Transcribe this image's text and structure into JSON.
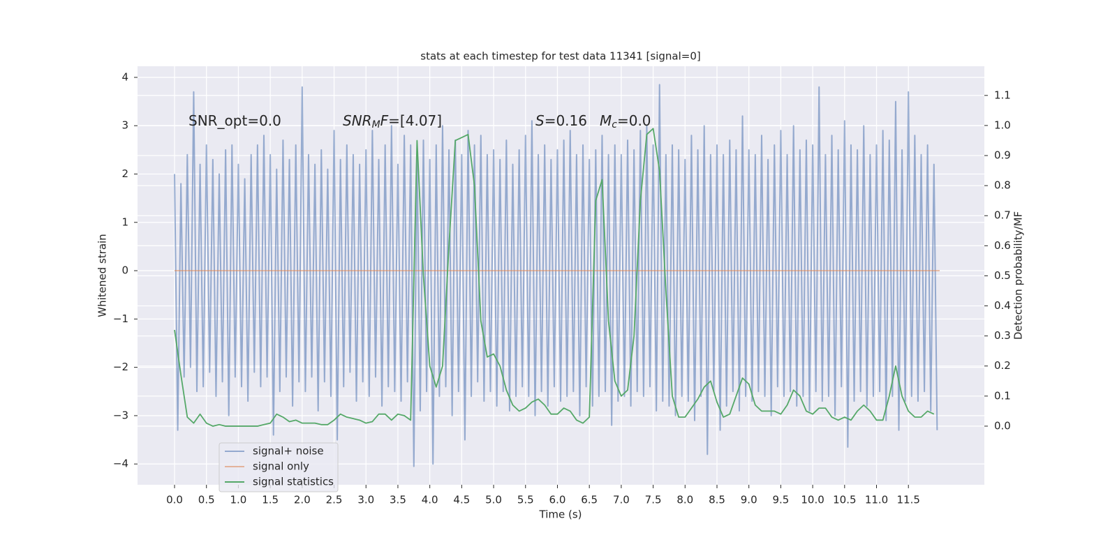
{
  "chart_data": {
    "type": "line",
    "title": "stats at each timestep for test data 11341 [signal=0]",
    "x_label": "Time (s)",
    "y_label": "Whitened strain",
    "y2_label": "Detection probability/MF",
    "xlim": [
      -0.58,
      12.69
    ],
    "ylim": [
      -4.43,
      4.23
    ],
    "y2lim": [
      -0.195,
      1.197
    ],
    "xticks": [
      {
        "value": 0,
        "label": "0.0"
      },
      0.5,
      {
        "value": 1,
        "label": "1.0"
      },
      1.5,
      {
        "value": 2,
        "label": "2.0"
      },
      2.5,
      {
        "value": 3,
        "label": "3.0"
      },
      3.5,
      {
        "value": 4,
        "label": "4.0"
      },
      4.5,
      {
        "value": 5,
        "label": "5.0"
      },
      5.5,
      {
        "value": 6,
        "label": "6.0"
      },
      6.5,
      {
        "value": 7,
        "label": "7.0"
      },
      7.5,
      {
        "value": 8,
        "label": "8.0"
      },
      8.5,
      {
        "value": 9,
        "label": "9.0"
      },
      9.5,
      {
        "value": 10,
        "label": "10.0"
      },
      10.5,
      {
        "value": 11,
        "label": "11.0"
      },
      11.5
    ],
    "yticks": [
      {
        "value": -4,
        "label": "−4"
      },
      {
        "value": -3,
        "label": "−3"
      },
      {
        "value": -2,
        "label": "−2"
      },
      {
        "value": -1,
        "label": "−1"
      },
      0,
      1,
      2,
      3,
      4
    ],
    "y2ticks": [
      {
        "value": 0,
        "label": "0.0"
      },
      0.1,
      0.2,
      0.3,
      0.4,
      0.5,
      0.6,
      0.7,
      0.8,
      0.9,
      {
        "value": 1,
        "label": "1.0"
      },
      1.1
    ],
    "grid": true,
    "legend": "lower left",
    "annotations": [
      [
        {
          "text": "SNR_opt=0.0"
        }
      ],
      [
        {
          "text": "SNR",
          "italic": true
        },
        {
          "text": "M",
          "italic": true,
          "sub": true
        },
        {
          "text": "F",
          "italic": true
        },
        {
          "text": "=[4.07]"
        }
      ],
      [
        {
          "text": "S",
          "italic": true
        },
        {
          "text": "=0.16"
        }
      ],
      [
        {
          "text": "M",
          "italic": true
        },
        {
          "text": "c",
          "italic": true,
          "sub": true
        },
        {
          "text": "=0.0"
        }
      ]
    ],
    "series": [
      {
        "name": "signal+ noise",
        "color": "#4c72b0",
        "alpha": 0.55,
        "x": [
          0,
          0.05,
          0.1,
          0.15,
          0.2,
          0.25,
          0.3,
          0.35,
          0.4,
          0.45,
          0.5,
          0.55,
          0.6,
          0.65,
          0.7,
          0.75,
          0.8,
          0.85,
          0.9,
          0.95,
          1,
          1.05,
          1.1,
          1.15,
          1.2,
          1.25,
          1.3,
          1.35,
          1.4,
          1.45,
          1.5,
          1.55,
          1.6,
          1.65,
          1.7,
          1.75,
          1.8,
          1.85,
          1.9,
          1.95,
          2,
          2.05,
          2.1,
          2.15,
          2.2,
          2.25,
          2.3,
          2.35,
          2.4,
          2.45,
          2.5,
          2.55,
          2.6,
          2.65,
          2.7,
          2.75,
          2.8,
          2.85,
          2.9,
          2.95,
          3,
          3.05,
          3.1,
          3.15,
          3.2,
          3.25,
          3.3,
          3.35,
          3.4,
          3.45,
          3.5,
          3.55,
          3.6,
          3.65,
          3.7,
          3.75,
          3.8,
          3.85,
          3.9,
          3.95,
          4,
          4.05,
          4.1,
          4.15,
          4.2,
          4.25,
          4.3,
          4.35,
          4.4,
          4.45,
          4.5,
          4.55,
          4.6,
          4.65,
          4.7,
          4.75,
          4.8,
          4.85,
          4.9,
          4.95,
          5,
          5.05,
          5.1,
          5.15,
          5.2,
          5.25,
          5.3,
          5.35,
          5.4,
          5.45,
          5.5,
          5.55,
          5.6,
          5.65,
          5.7,
          5.75,
          5.8,
          5.85,
          5.9,
          5.95,
          6,
          6.05,
          6.1,
          6.15,
          6.2,
          6.25,
          6.3,
          6.35,
          6.4,
          6.45,
          6.5,
          6.55,
          6.6,
          6.65,
          6.7,
          6.75,
          6.8,
          6.85,
          6.9,
          6.95,
          7,
          7.05,
          7.1,
          7.15,
          7.2,
          7.25,
          7.3,
          7.35,
          7.4,
          7.45,
          7.5,
          7.55,
          7.6,
          7.65,
          7.7,
          7.75,
          7.8,
          7.85,
          7.9,
          7.95,
          8,
          8.05,
          8.1,
          8.15,
          8.2,
          8.25,
          8.3,
          8.35,
          8.4,
          8.45,
          8.5,
          8.55,
          8.6,
          8.65,
          8.7,
          8.75,
          8.8,
          8.85,
          8.9,
          8.95,
          9,
          9.05,
          9.1,
          9.15,
          9.2,
          9.25,
          9.3,
          9.35,
          9.4,
          9.45,
          9.5,
          9.55,
          9.6,
          9.65,
          9.7,
          9.75,
          9.8,
          9.85,
          9.9,
          9.95,
          10,
          10.05,
          10.1,
          10.15,
          10.2,
          10.25,
          10.3,
          10.35,
          10.4,
          10.45,
          10.5,
          10.55,
          10.6,
          10.65,
          10.7,
          10.75,
          10.8,
          10.85,
          10.9,
          10.95,
          11,
          11.05,
          11.1,
          11.15,
          11.2,
          11.25,
          11.3,
          11.35,
          11.4,
          11.45,
          11.5,
          11.55,
          11.6,
          11.65,
          11.7,
          11.75,
          11.8,
          11.85,
          11.9,
          11.95
        ],
        "values": [
          2.0,
          -3.3,
          1.8,
          -2.2,
          2.4,
          -2.0,
          3.7,
          -2.5,
          2.2,
          -2.4,
          2.6,
          -2.1,
          2.3,
          -2.6,
          2.0,
          -2.3,
          2.5,
          -3.0,
          2.6,
          -2.2,
          2.2,
          -2.4,
          1.9,
          -2.7,
          2.4,
          -2.1,
          2.6,
          -2.4,
          2.8,
          -2.2,
          2.4,
          -3.4,
          2.1,
          -2.5,
          2.7,
          -2.2,
          2.3,
          -2.8,
          2.6,
          -2.3,
          3.8,
          -2.5,
          2.4,
          -2.2,
          2.2,
          -2.9,
          2.5,
          -2.3,
          2.1,
          -2.6,
          2.9,
          -3.5,
          2.3,
          -2.4,
          2.6,
          -2.1,
          2.4,
          -2.7,
          2.2,
          -2.3,
          2.5,
          -2.6,
          2.9,
          -2.2,
          2.3,
          -2.8,
          2.6,
          -2.4,
          3.0,
          -2.5,
          2.2,
          -2.7,
          2.8,
          -2.3,
          2.6,
          -4.05,
          2.4,
          -2.9,
          2.7,
          -2.5,
          2.3,
          -4.0,
          2.6,
          -2.6,
          3.0,
          -2.4,
          2.5,
          -3.0,
          2.7,
          -2.5,
          2.4,
          -3.5,
          2.9,
          -2.6,
          2.6,
          -2.3,
          2.8,
          -2.7,
          2.4,
          -2.5,
          2.5,
          -2.8,
          2.3,
          -2.5,
          2.7,
          -2.9,
          2.2,
          -2.6,
          2.5,
          -2.4,
          2.8,
          -2.6,
          3.1,
          -3.0,
          2.4,
          -2.5,
          2.6,
          -2.8,
          2.3,
          -2.4,
          2.5,
          -2.7,
          2.7,
          -2.6,
          2.9,
          -2.5,
          2.4,
          -3.0,
          2.6,
          -2.4,
          2.3,
          -2.8,
          2.5,
          -2.6,
          2.8,
          -2.5,
          2.4,
          -3.2,
          2.6,
          -2.7,
          2.4,
          -2.6,
          2.7,
          -2.8,
          2.5,
          -2.5,
          2.9,
          -2.6,
          3.0,
          -2.4,
          2.6,
          -2.9,
          3.85,
          -2.7,
          2.4,
          -2.8,
          2.6,
          -3.0,
          2.5,
          -2.6,
          2.3,
          -2.7,
          2.8,
          -3.1,
          2.5,
          -2.6,
          3.0,
          -3.8,
          2.4,
          -2.5,
          2.6,
          -3.3,
          2.4,
          -2.8,
          2.7,
          -2.5,
          2.5,
          -2.9,
          3.2,
          -2.6,
          2.5,
          -2.7,
          2.4,
          -2.5,
          2.8,
          -2.6,
          2.3,
          -3.0,
          2.6,
          -2.4,
          2.9,
          -2.6,
          2.4,
          -2.5,
          3.0,
          -2.8,
          2.5,
          -2.6,
          2.7,
          -2.9,
          2.6,
          -2.5,
          3.8,
          -2.7,
          2.4,
          -2.6,
          2.8,
          -3.0,
          2.5,
          -2.4,
          3.1,
          -3.65,
          2.6,
          -2.7,
          2.5,
          -2.5,
          3.0,
          -2.8,
          2.4,
          -2.6,
          2.6,
          -2.5,
          2.9,
          -3.1,
          2.7,
          -2.6,
          3.5,
          -3.3,
          2.5,
          -2.7,
          3.7,
          -2.6,
          2.8,
          -2.7,
          2.4,
          -2.5,
          2.6,
          -2.9,
          2.2,
          -3.3
        ]
      },
      {
        "name": "signal only",
        "color": "#dd8452",
        "alpha": 0.55,
        "x": [
          0,
          11.99
        ],
        "values": [
          0,
          0
        ]
      },
      {
        "name": "signal statistics",
        "color": "#55a868",
        "alpha": 1,
        "axis": "y2",
        "x": [
          0,
          0.1,
          0.2,
          0.3,
          0.4,
          0.5,
          0.6,
          0.7,
          0.8,
          0.9,
          1,
          1.1,
          1.2,
          1.3,
          1.4,
          1.5,
          1.6,
          1.7,
          1.8,
          1.9,
          2,
          2.1,
          2.2,
          2.3,
          2.4,
          2.5,
          2.6,
          2.7,
          2.8,
          2.9,
          3,
          3.1,
          3.2,
          3.3,
          3.4,
          3.5,
          3.6,
          3.7,
          3.8,
          3.9,
          4,
          4.1,
          4.2,
          4.3,
          4.4,
          4.5,
          4.6,
          4.7,
          4.8,
          4.9,
          5,
          5.1,
          5.2,
          5.3,
          5.4,
          5.5,
          5.6,
          5.7,
          5.8,
          5.9,
          6,
          6.1,
          6.2,
          6.3,
          6.4,
          6.5,
          6.6,
          6.7,
          6.8,
          6.9,
          7,
          7.1,
          7.2,
          7.3,
          7.4,
          7.5,
          7.6,
          7.7,
          7.8,
          7.9,
          8,
          8.1,
          8.2,
          8.3,
          8.4,
          8.5,
          8.6,
          8.7,
          8.8,
          8.9,
          9,
          9.1,
          9.2,
          9.3,
          9.4,
          9.5,
          9.6,
          9.7,
          9.8,
          9.9,
          10,
          10.1,
          10.2,
          10.3,
          10.4,
          10.5,
          10.6,
          10.7,
          10.8,
          10.9,
          11,
          11.1,
          11.2,
          11.3,
          11.4,
          11.5,
          11.6,
          11.7,
          11.8,
          11.9
        ],
        "values": [
          0.32,
          0.17,
          0.03,
          0.01,
          0.04,
          0.01,
          0,
          0.005,
          0,
          0,
          0,
          0,
          0,
          0,
          0.005,
          0.01,
          0.04,
          0.03,
          0.015,
          0.02,
          0.01,
          0.01,
          0.01,
          0.005,
          0.005,
          0.02,
          0.04,
          0.03,
          0.025,
          0.02,
          0.01,
          0.015,
          0.04,
          0.04,
          0.02,
          0.04,
          0.035,
          0.02,
          0.95,
          0.5,
          0.2,
          0.13,
          0.2,
          0.6,
          0.95,
          0.96,
          0.97,
          0.8,
          0.35,
          0.23,
          0.24,
          0.2,
          0.12,
          0.07,
          0.05,
          0.06,
          0.08,
          0.09,
          0.07,
          0.04,
          0.04,
          0.06,
          0.05,
          0.02,
          0.01,
          0.03,
          0.75,
          0.82,
          0.35,
          0.15,
          0.1,
          0.12,
          0.3,
          0.75,
          0.97,
          0.99,
          0.85,
          0.45,
          0.1,
          0.03,
          0.03,
          0.06,
          0.09,
          0.13,
          0.15,
          0.08,
          0.03,
          0.04,
          0.1,
          0.16,
          0.14,
          0.07,
          0.05,
          0.05,
          0.05,
          0.04,
          0.07,
          0.12,
          0.1,
          0.05,
          0.04,
          0.06,
          0.06,
          0.03,
          0.02,
          0.03,
          0.02,
          0.05,
          0.07,
          0.05,
          0.02,
          0.02,
          0.1,
          0.2,
          0.1,
          0.05,
          0.03,
          0.03,
          0.05,
          0.04
        ]
      }
    ]
  }
}
